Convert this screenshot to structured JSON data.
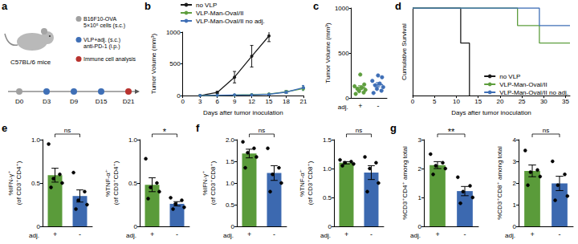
{
  "schematic": {
    "panel_label": "a",
    "subject": "C57BL/6 mice",
    "key": [
      {
        "label": "B16F10-OVA\n5×10⁵ cells (s.c.)",
        "color": "#a0a0a0"
      },
      {
        "label": "VLP+adj. (s.c.)\nanti-PD-1 (i.p.)",
        "color": "#3f6fb6"
      },
      {
        "label": "Immune cell analysis",
        "color": "#b8322e"
      }
    ],
    "timeline": [
      {
        "label": "D0",
        "color": "#a0a0a0"
      },
      {
        "label": "D3",
        "color": "#3f6fb6"
      },
      {
        "label": "D9",
        "color": "#3f6fb6"
      },
      {
        "label": "D15",
        "color": "#3f6fb6"
      },
      {
        "label": "D21",
        "color": "#b8322e"
      }
    ]
  },
  "chart_data": [
    {
      "panel_label": "b",
      "type": "line",
      "xlabel": "Days after tumor inoculation",
      "ylabel": "Tumor Volume (mm³)",
      "x": [
        3,
        6,
        9,
        12,
        15,
        18,
        21
      ],
      "xlim": [
        0,
        21
      ],
      "xticks": [
        0,
        3,
        6,
        9,
        12,
        15,
        18,
        21
      ],
      "ylim": [
        0,
        1000
      ],
      "yticks": [
        0,
        500,
        1000
      ],
      "grid": false,
      "legend": "upper left",
      "marker": "circle",
      "series": [
        {
          "name": "no VLP",
          "color": "#1a1a1a",
          "values": [
            0,
            50,
            290,
            620,
            940,
            null,
            null
          ],
          "errors": [
            0,
            15,
            90,
            170,
            90,
            null,
            null
          ]
        },
        {
          "name": "VLP-Man-OvaI/II",
          "color": "#5e9e3e",
          "values": [
            0,
            5,
            8,
            15,
            25,
            60,
            110
          ],
          "errors": [
            0,
            2,
            4,
            6,
            10,
            20,
            30
          ]
        },
        {
          "name": "VLP-Man-OvaI/II no adj.",
          "color": "#3f6fb6",
          "values": [
            0,
            5,
            10,
            12,
            20,
            55,
            125
          ],
          "errors": [
            0,
            2,
            4,
            5,
            8,
            20,
            35
          ]
        }
      ]
    },
    {
      "panel_label": "c",
      "type": "dot",
      "xlabel": "adj.",
      "ylabel": "Tumor Volume (mm³)",
      "categories": [
        "+",
        "-"
      ],
      "colors": [
        "#5e9e3e",
        "#3f6fb6"
      ],
      "ylim": [
        0,
        1000
      ],
      "yticks": [
        0,
        500,
        1000
      ],
      "grid": false,
      "values": [
        114,
        147
      ],
      "errors": [
        21,
        23
      ],
      "points": [
        [
          45,
          60,
          75,
          90,
          100,
          115,
          130,
          150,
          260
        ],
        [
          55,
          80,
          100,
          120,
          140,
          160,
          190,
          230,
          250
        ]
      ]
    },
    {
      "panel_label": "d",
      "type": "step",
      "xlabel": "Days after tumor inoculation",
      "ylabel": "Cumulative Survival",
      "xlim": [
        0,
        36
      ],
      "xticks": [
        0,
        5,
        10,
        15,
        20,
        25,
        30,
        35
      ],
      "ylim": [
        0,
        1
      ],
      "tick_labels": "x",
      "grid": false,
      "legend": "lower right",
      "series": [
        {
          "name": "no VLP",
          "color": "#1a1a1a",
          "x": [
            0,
            11,
            13
          ],
          "values": [
            1,
            0.6,
            0
          ]
        },
        {
          "name": "VLP-Man-OvaI/II",
          "color": "#5e9e3e",
          "x": [
            0,
            24,
            29,
            36
          ],
          "values": [
            1,
            0.8,
            0.6,
            0.6
          ]
        },
        {
          "name": "VLP-Man-OvaI/II no adj.",
          "color": "#3f6fb6",
          "x": [
            0,
            29,
            36
          ],
          "values": [
            1,
            0.8,
            0.8
          ]
        }
      ]
    },
    {
      "panel_label": "e",
      "type": "bar",
      "xlabel": "adj.",
      "ylabel": "%IFN-γ⁺\n(of CD3⁺CD4⁺)",
      "categories": [
        "+",
        "-"
      ],
      "colors": [
        "#5a9b3a",
        "#3c69b0"
      ],
      "ylim": [
        0,
        1
      ],
      "yticks": [
        0,
        0.5,
        {
          "value": 1,
          "label": "1.0"
        }
      ],
      "grid": false,
      "values": [
        0.59,
        0.35
      ],
      "errors": [
        0.08,
        0.07
      ],
      "points": [
        [
          0.95,
          0.6,
          0.55,
          0.5,
          0.45
        ],
        [
          0.62,
          0.4,
          0.3,
          0.25,
          0.2
        ]
      ],
      "annotation": "ns"
    },
    {
      "type": "bar",
      "xlabel": "adj.",
      "ylabel": "%TNF-α⁺\n(of CD3⁺CD4⁺)",
      "categories": [
        "+",
        "-"
      ],
      "colors": [
        "#5a9b3a",
        "#3c69b0"
      ],
      "ylim": [
        0,
        1
      ],
      "yticks": [
        0,
        0.5,
        {
          "value": 1,
          "label": "1.0"
        }
      ],
      "grid": false,
      "values": [
        0.48,
        0.26
      ],
      "errors": [
        0.08,
        0.025
      ],
      "points": [
        [
          0.78,
          0.5,
          0.45,
          0.4,
          0.32
        ],
        [
          0.33,
          0.3,
          0.26,
          0.22,
          0.2
        ]
      ],
      "annotation": "*"
    },
    {
      "panel_label": "f",
      "type": "bar",
      "xlabel": "adj.",
      "ylabel": "%IFN-γ⁺\n(of CD3⁺CD8⁺)",
      "categories": [
        "+",
        "-"
      ],
      "colors": [
        "#5a9b3a",
        "#3c69b0"
      ],
      "ylim": [
        0,
        2
      ],
      "yticks": [
        0,
        0.5,
        {
          "value": 1,
          "label": "1.0"
        },
        1.5,
        {
          "value": 2,
          "label": "2.0"
        }
      ],
      "grid": false,
      "values": [
        1.68,
        1.23
      ],
      "errors": [
        0.1,
        0.17
      ],
      "points": [
        [
          1.95,
          1.8,
          1.7,
          1.6,
          1.35
        ],
        [
          1.8,
          1.35,
          1.2,
          1.0,
          0.8
        ]
      ],
      "annotation": "ns"
    },
    {
      "type": "bar",
      "xlabel": "adj.",
      "ylabel": "%TNF-α⁺\n(of CD3⁺CD8⁺)",
      "categories": [
        "+",
        "-"
      ],
      "colors": [
        "#5a9b3a",
        "#3c69b0"
      ],
      "ylim": [
        0,
        1.5
      ],
      "yticks": [
        0,
        0.5,
        {
          "value": 1,
          "label": "1.0"
        },
        1.5
      ],
      "grid": false,
      "values": [
        1.1,
        0.93
      ],
      "errors": [
        0.02,
        0.12
      ],
      "points": [
        [
          1.15,
          1.12,
          1.1,
          1.08,
          1.05
        ],
        [
          1.2,
          1.1,
          1.0,
          0.75,
          0.6
        ]
      ],
      "annotation": "ns"
    },
    {
      "panel_label": "g",
      "type": "bar",
      "xlabel": "adj.",
      "ylabel": "%CD3⁺CD4⁺ among total",
      "categories": [
        "+",
        "-"
      ],
      "colors": [
        "#5a9b3a",
        "#3c69b0"
      ],
      "ylim": [
        0,
        3
      ],
      "yticks": [
        0,
        1,
        2,
        3
      ],
      "grid": false,
      "values": [
        2.12,
        1.22
      ],
      "errors": [
        0.12,
        0.16
      ],
      "points": [
        [
          2.5,
          2.2,
          2.1,
          2.0,
          1.8
        ],
        [
          1.7,
          1.4,
          1.2,
          1.0,
          0.8
        ]
      ],
      "annotation": "**"
    },
    {
      "type": "bar",
      "xlabel": "adj.",
      "ylabel": "%CD3⁺CD8⁺ among total",
      "categories": [
        "+",
        "-"
      ],
      "colors": [
        "#5a9b3a",
        "#3c69b0"
      ],
      "ylim": [
        0,
        4
      ],
      "yticks": [
        0,
        1,
        2,
        3,
        4
      ],
      "grid": false,
      "values": [
        2.56,
        1.98
      ],
      "errors": [
        0.27,
        0.33
      ],
      "points": [
        [
          3.5,
          2.6,
          2.5,
          2.3,
          1.9
        ],
        [
          3.0,
          2.4,
          1.9,
          1.4,
          1.2
        ]
      ],
      "annotation": "ns"
    }
  ]
}
